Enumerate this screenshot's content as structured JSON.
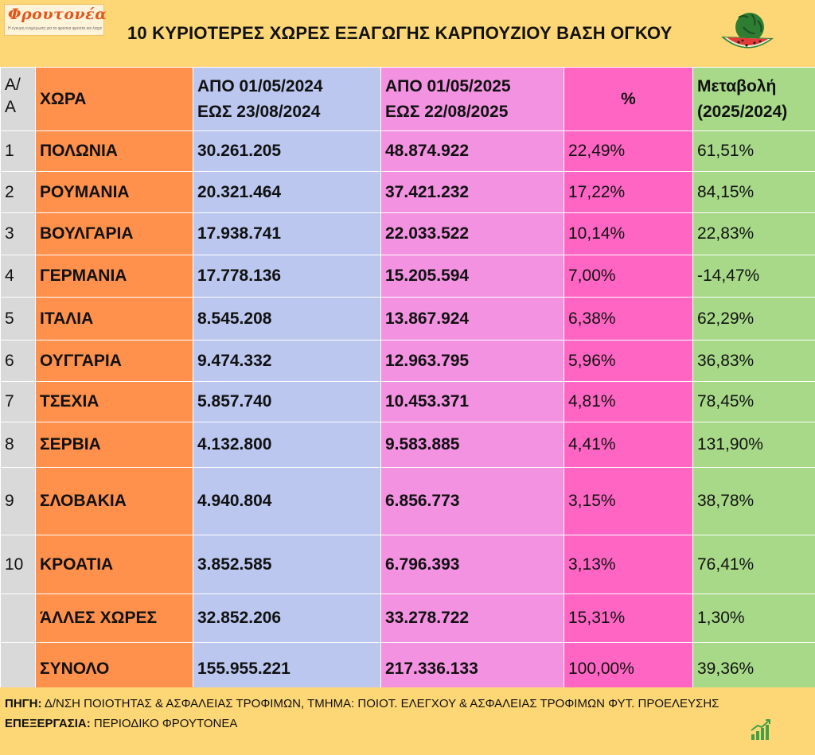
{
  "logo": {
    "name": "Φρουτονέα",
    "tagline": "Η έγκυρη ενημέρωση για τα φρέσκα φρούτα και λαχανικά"
  },
  "title": "10 ΚΥΡΙΟΤΕΡΕΣ ΧΩΡΕΣ ΕΞΑΓΩΓΗΣ ΚΑΡΠΟΥΖΙΟΥ ΒΑΣΗ ΟΓΚΟΥ",
  "icons": {
    "logo_illustration": "watermelon-slice-icon",
    "footer": "growth-chart-icon"
  },
  "colors": {
    "background": "#fdd776",
    "num_col": "#d9d9d9",
    "country_col": "#ff914d",
    "year2024_col": "#bcc7f0",
    "year2025_col": "#f292e1",
    "pct_col": "#ff66c4",
    "change_col": "#a8d989"
  },
  "headers": {
    "num_1": "Α/",
    "num_2": "Α",
    "country": "ΧΩΡΑ",
    "y2024_1": "ΑΠΟ 01/05/2024",
    "y2024_2": "ΕΩΣ  23/08/2024",
    "y2025_1": "ΑΠΟ 01/05/2025",
    "y2025_2": "ΕΩΣ  22/08/2025",
    "pct": "%",
    "change_1": "Μεταβολή",
    "change_2": "(2025/2024)"
  },
  "rows": [
    {
      "num": "1",
      "country": "ΠΟΛΩΝΙΑ",
      "v2024": "30.261.205",
      "v2025": "48.874.922",
      "pct": "22,49%",
      "change": "61,51%"
    },
    {
      "num": "2",
      "country": "ΡΟΥΜΑΝΙΑ",
      "v2024": "20.321.464",
      "v2025": "37.421.232",
      "pct": "17,22%",
      "change": "84,15%"
    },
    {
      "num": "3",
      "country": "ΒΟΥΛΓΑΡΙΑ",
      "v2024": "17.938.741",
      "v2025": "22.033.522",
      "pct": "10,14%",
      "change": "22,83%"
    },
    {
      "num": "4",
      "country": "ΓΕΡΜΑΝΙΑ",
      "v2024": "17.778.136",
      "v2025": "15.205.594",
      "pct": "7,00%",
      "change": "-14,47%"
    },
    {
      "num": "5",
      "country": "ΙΤΑΛΙΑ",
      "v2024": "8.545.208",
      "v2025": "13.867.924",
      "pct": "6,38%",
      "change": "62,29%"
    },
    {
      "num": "6",
      "country": "ΟΥΓΓΑΡΙΑ",
      "v2024": "9.474.332",
      "v2025": "12.963.795",
      "pct": "5,96%",
      "change": "36,83%"
    },
    {
      "num": "7",
      "country": "ΤΣΕΧΙΑ",
      "v2024": "5.857.740",
      "v2025": "10.453.371",
      "pct": "4,81%",
      "change": "78,45%"
    },
    {
      "num": "8",
      "country": "ΣΕΡΒΙΑ",
      "v2024": "4.132.800",
      "v2025": "9.583.885",
      "pct": "4,41%",
      "change": "131,90%"
    },
    {
      "num": "9",
      "country": "ΣΛΟΒΑΚΙΑ",
      "v2024": "4.940.804",
      "v2025": "6.856.773",
      "pct": "3,15%",
      "change": "38,78%"
    },
    {
      "num": "10",
      "country": "ΚΡΟΑΤΙΑ",
      "v2024": "3.852.585",
      "v2025": "6.796.393",
      "pct": "3,13%",
      "change": "76,41%"
    },
    {
      "num": "",
      "country": "ΆΛΛΕΣ ΧΩΡΕΣ",
      "v2024": "32.852.206",
      "v2025": "33.278.722",
      "pct": "15,31%",
      "change": "1,30%"
    },
    {
      "num": "",
      "country": "ΣΥΝΟΛΟ",
      "v2024": "155.955.221",
      "v2025": "217.336.133",
      "pct": "100,00%",
      "change": "39,36%"
    }
  ],
  "footer": {
    "source_label": "ΠΗΓΗ:",
    "source_text": " Δ/ΝΣΗ ΠΟΙΟΤΗΤΑΣ & ΑΣΦΑΛΕΙΑΣ ΤΡΟΦΙΜΩΝ, ΤΜΗΜΑ: ΠΟΙΟΤ. ΕΛΕΓΧΟΥ & ΑΣΦΑΛΕΙΑΣ ΤΡΟΦΙΜΩΝ ΦΥΤ. ΠΡΟΕΛΕΥΣΗΣ",
    "processing_label": "ΕΠΕΞΕΡΓΑΣΙΑ:",
    "processing_text": " ΠΕΡΙΟΔΙΚΟ ΦΡΟΥΤΟΝΕΑ"
  }
}
